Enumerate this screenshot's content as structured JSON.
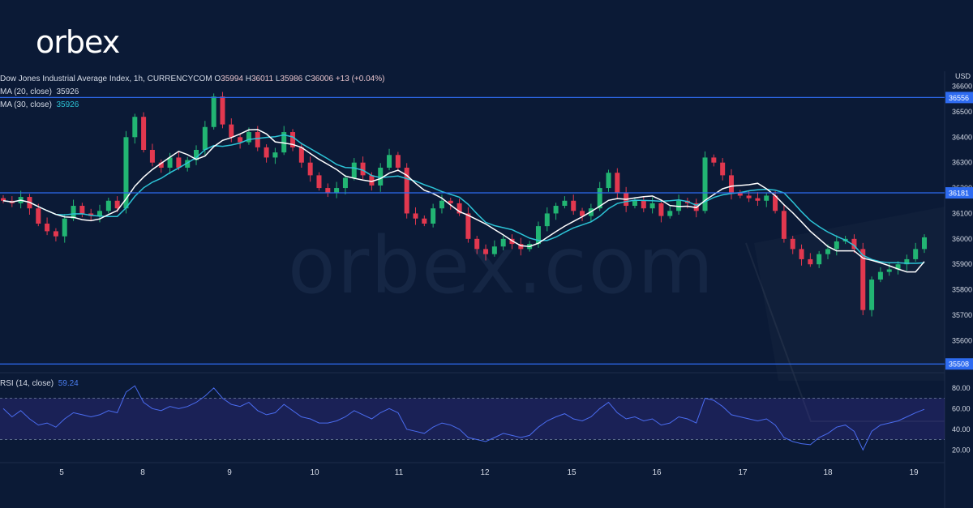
{
  "brand": {
    "logo": "orbex",
    "watermark": "orbex.com"
  },
  "header": {
    "title": "Dow Jones Industrial Average Index, 1h, CURRENCYCOM",
    "o_label": "O",
    "o": "35994",
    "h_label": "H",
    "h": "36011",
    "l_label": "L",
    "l": "35986",
    "c_label": "C",
    "c": "36006",
    "change": "+13 (+0.04%)",
    "sma20_label": "MA (20, close)",
    "sma20_value": "35926",
    "sma30_label": "MA (30, close)",
    "sma30_value": "35926",
    "currency": "USD"
  },
  "rsi": {
    "label": "RSI (14, close)",
    "value": "59.24"
  },
  "colors": {
    "background": "#0b1a36",
    "bull": "#22b573",
    "bear": "#e2384f",
    "level": "#2e6bf0",
    "sma20": "#ffffff",
    "sma30": "#2cc3d6",
    "rsi": "#4a6cf0"
  },
  "chart_data": {
    "type": "candlestick",
    "ylim": [
      35480,
      36640
    ],
    "y_ticks": [
      36600,
      36500,
      36400,
      36300,
      36200,
      36100,
      36000,
      35900,
      35800,
      35700,
      35600
    ],
    "x_ticks": [
      "5",
      "8",
      "9",
      "10",
      "11",
      "12",
      "15",
      "16",
      "17",
      "18",
      "19"
    ],
    "levels": [
      36556,
      36181,
      35508
    ],
    "rsi_ylim": [
      10,
      90
    ],
    "rsi_ticks": [
      "80.00",
      "60.00",
      "40.00",
      "20.00"
    ],
    "rsi_bands": [
      70,
      30
    ],
    "price_path": [
      36150,
      36140,
      36165,
      36120,
      36060,
      36030,
      36010,
      36080,
      36130,
      36100,
      36090,
      36110,
      36150,
      36120,
      36400,
      36480,
      36350,
      36300,
      36280,
      36320,
      36280,
      36310,
      36350,
      36440,
      36560,
      36450,
      36400,
      36380,
      36420,
      36360,
      36320,
      36340,
      36420,
      36360,
      36300,
      36250,
      36200,
      36180,
      36200,
      36240,
      36300,
      36250,
      36210,
      36280,
      36330,
      36280,
      36100,
      36080,
      36060,
      36120,
      36150,
      36140,
      36100,
      36000,
      35960,
      35940,
      35970,
      36000,
      35980,
      35960,
      35980,
      36050,
      36100,
      36130,
      36150,
      36110,
      36090,
      36120,
      36200,
      36260,
      36180,
      36130,
      36150,
      36120,
      36140,
      36090,
      36110,
      36150,
      36140,
      36110,
      36320,
      36300,
      36250,
      36180,
      36170,
      36160,
      36150,
      36170,
      36110,
      36000,
      35960,
      35920,
      35900,
      35940,
      35960,
      35990,
      36000,
      35960,
      35720,
      35840,
      35870,
      35880,
      35900,
      35920,
      35960,
      36006
    ],
    "rsi_series": [
      60,
      52,
      58,
      50,
      44,
      46,
      42,
      50,
      56,
      54,
      52,
      54,
      58,
      56,
      76,
      82,
      66,
      60,
      58,
      62,
      60,
      62,
      66,
      72,
      80,
      70,
      64,
      62,
      66,
      58,
      54,
      56,
      64,
      58,
      52,
      50,
      46,
      46,
      48,
      52,
      58,
      54,
      50,
      56,
      60,
      56,
      40,
      38,
      36,
      42,
      46,
      44,
      40,
      32,
      30,
      28,
      32,
      36,
      34,
      32,
      34,
      42,
      48,
      52,
      55,
      50,
      48,
      52,
      60,
      66,
      56,
      50,
      52,
      48,
      50,
      44,
      46,
      52,
      50,
      46,
      70,
      68,
      62,
      54,
      52,
      50,
      48,
      50,
      44,
      32,
      28,
      26,
      25,
      32,
      36,
      42,
      44,
      38,
      20,
      38,
      44,
      46,
      48,
      52,
      56,
      59.24
    ]
  }
}
